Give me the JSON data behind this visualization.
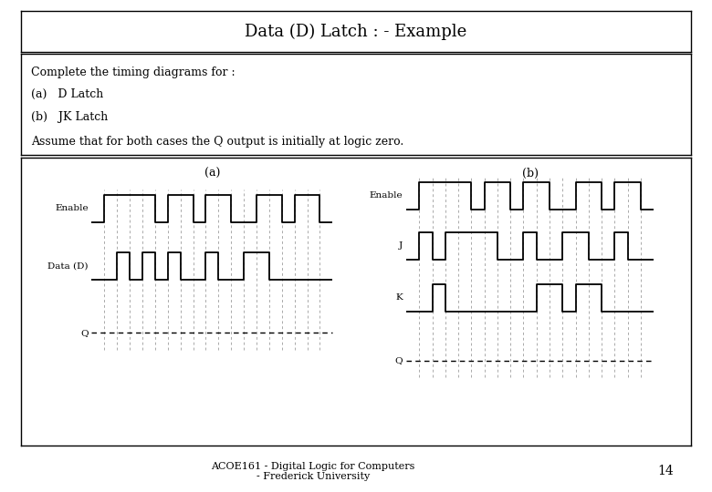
{
  "title": "Data (D) Latch : - Example",
  "text_block_lines": [
    "Complete the timing diagrams for :",
    "(a)   D Latch",
    "(b)   JK Latch",
    "Assume that for both cases the Q output is initially at logic zero."
  ],
  "footer_center": "ACOE161 - Digital Logic for Computers\n- Frederick University",
  "page_num": "14",
  "bg_color": "#ffffff",
  "border_color": "#000000",
  "a_label": "(a)",
  "b_label": "(b)",
  "a_enable": [
    0,
    1,
    1,
    1,
    1,
    0,
    1,
    1,
    0,
    1,
    1,
    0,
    0,
    1,
    1,
    0,
    1,
    1,
    0
  ],
  "a_data": [
    0,
    0,
    1,
    0,
    1,
    0,
    1,
    0,
    0,
    1,
    0,
    0,
    1,
    1,
    0,
    0,
    0,
    0,
    0
  ],
  "b_enable": [
    0,
    1,
    1,
    1,
    1,
    0,
    1,
    1,
    0,
    1,
    1,
    0,
    0,
    1,
    1,
    0,
    1,
    1,
    0
  ],
  "b_j": [
    0,
    1,
    0,
    1,
    1,
    1,
    1,
    0,
    0,
    1,
    0,
    0,
    1,
    1,
    0,
    0,
    1,
    0,
    0
  ],
  "b_k": [
    0,
    0,
    1,
    0,
    0,
    0,
    0,
    0,
    0,
    0,
    1,
    1,
    0,
    1,
    1,
    0,
    0,
    0,
    0
  ]
}
